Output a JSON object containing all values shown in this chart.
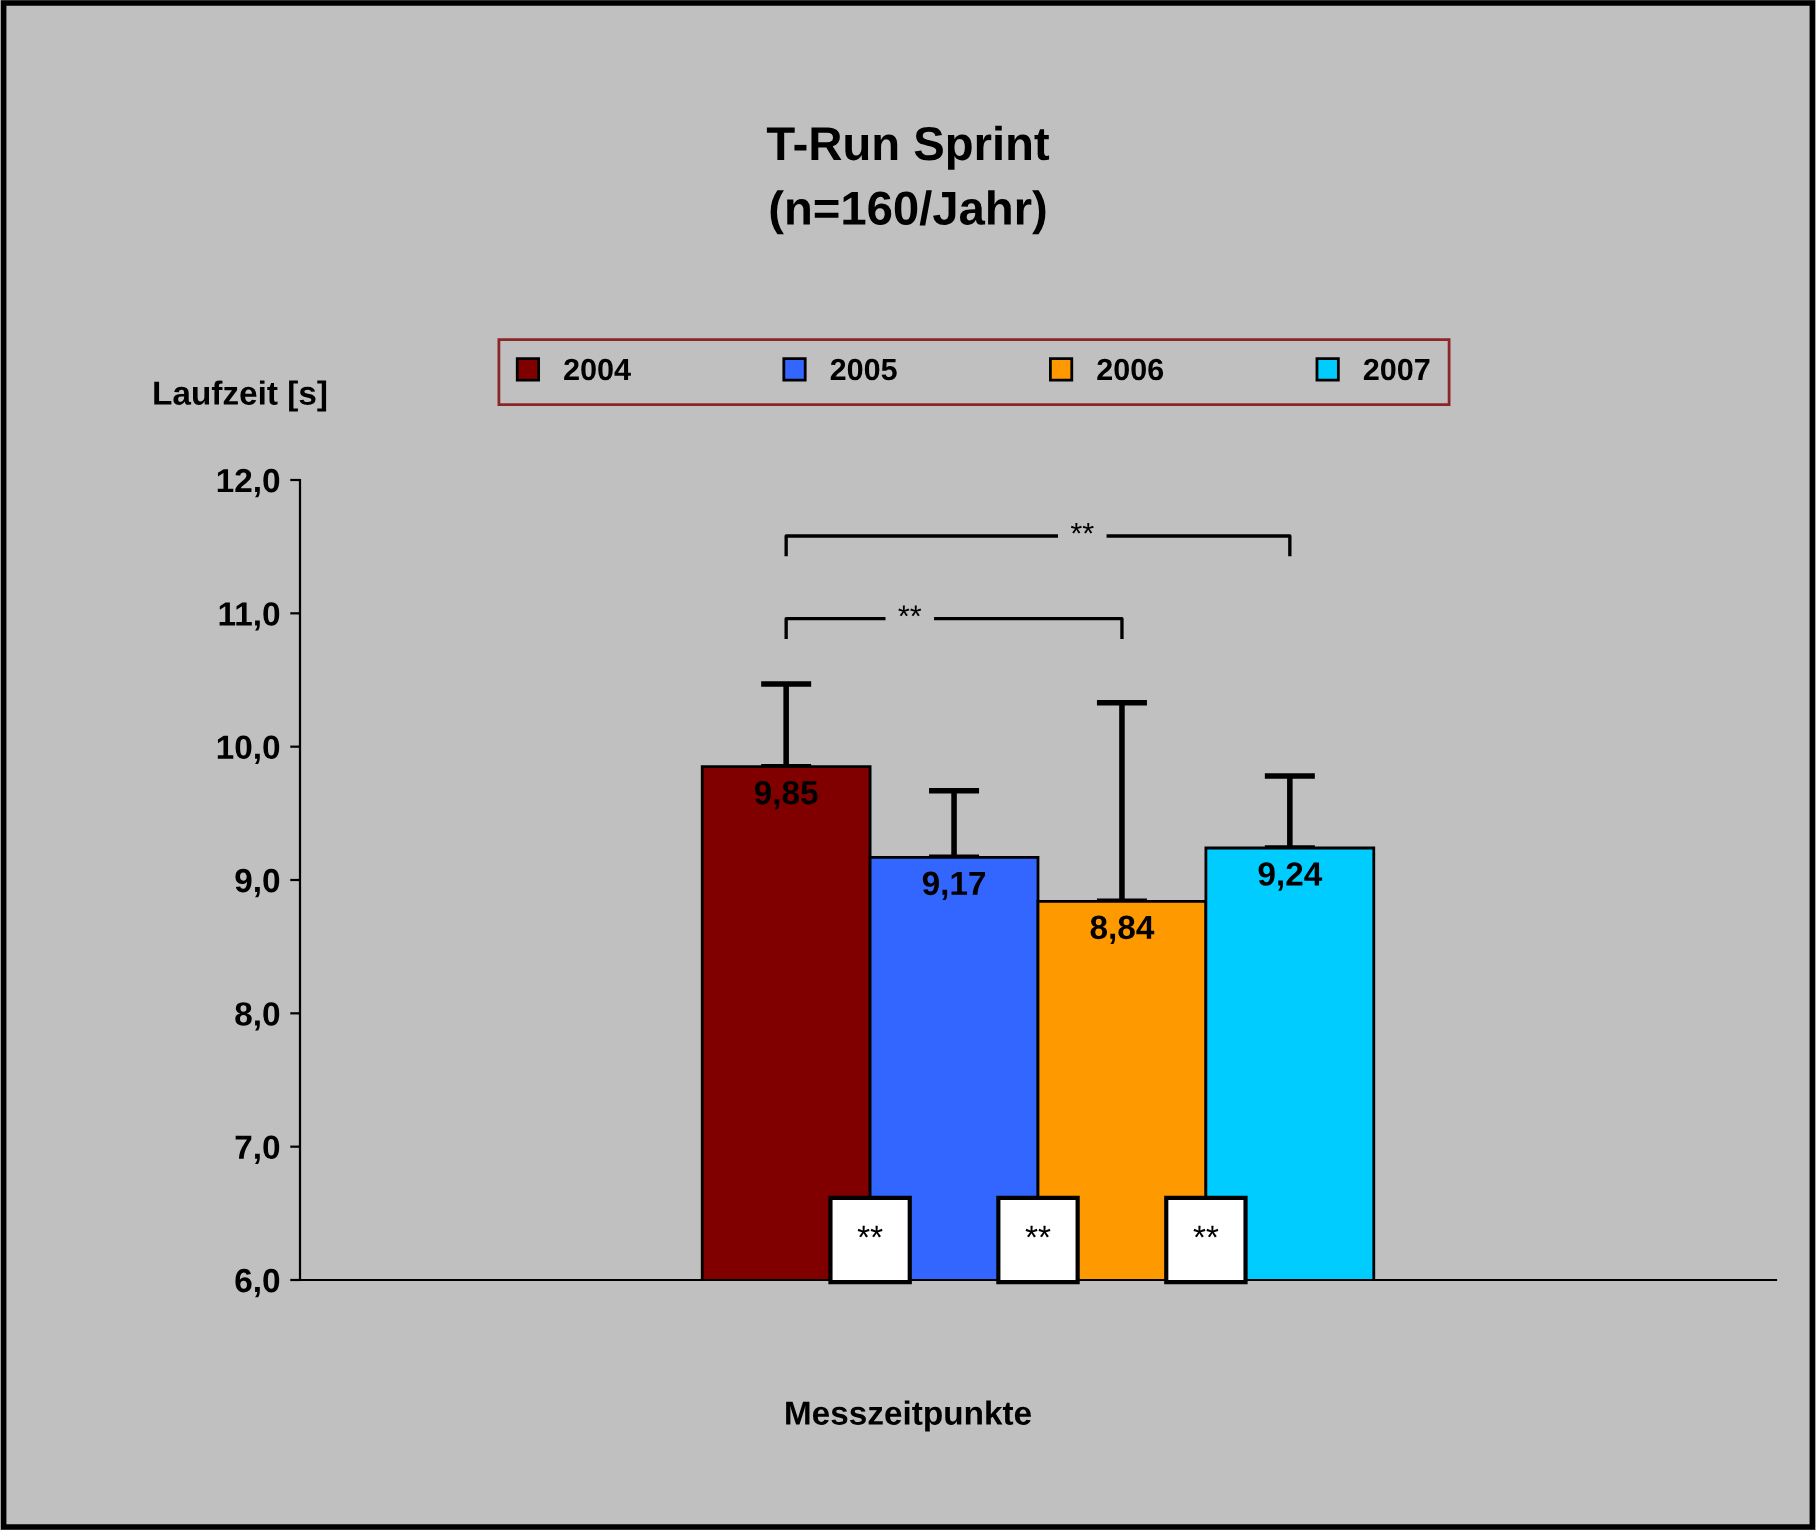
{
  "chart_data": {
    "type": "bar",
    "title": "T-Run Sprint\n(n=160/Jahr)",
    "xlabel": "Messzeitpunkte",
    "ylabel": "Laufzeit [s]",
    "categories": [
      null
    ],
    "series": [
      {
        "name": "2004",
        "color": "#800000",
        "values": [
          9.85
        ],
        "errors": [
          [
            9.85,
            10.47
          ]
        ],
        "value_labels": [
          "9,85"
        ]
      },
      {
        "name": "2005",
        "color": "#3366ff",
        "values": [
          9.17
        ],
        "errors": [
          [
            9.17,
            9.67
          ]
        ],
        "value_labels": [
          "9,17"
        ]
      },
      {
        "name": "2006",
        "color": "#ff9900",
        "values": [
          8.84
        ],
        "errors": [
          [
            8.84,
            10.33
          ]
        ],
        "value_labels": [
          "8,84"
        ]
      },
      {
        "name": "2007",
        "color": "#00ccff",
        "values": [
          9.24
        ],
        "errors": [
          [
            9.24,
            9.78
          ]
        ],
        "value_labels": [
          "9,24"
        ]
      }
    ],
    "ylim": [
      6,
      12
    ],
    "yticks": [
      {
        "value": 6,
        "label": "6,0"
      },
      {
        "value": 7,
        "label": "7,0"
      },
      {
        "value": 8,
        "label": "8,0"
      },
      {
        "value": 9,
        "label": "9,0"
      },
      {
        "value": 10,
        "label": "10,0"
      },
      {
        "value": 11,
        "label": "11,0"
      },
      {
        "value": 12,
        "label": "12,0"
      }
    ],
    "annotations": [
      "**",
      "**",
      "**",
      "**",
      "**"
    ],
    "grid": false,
    "legend": "top"
  }
}
